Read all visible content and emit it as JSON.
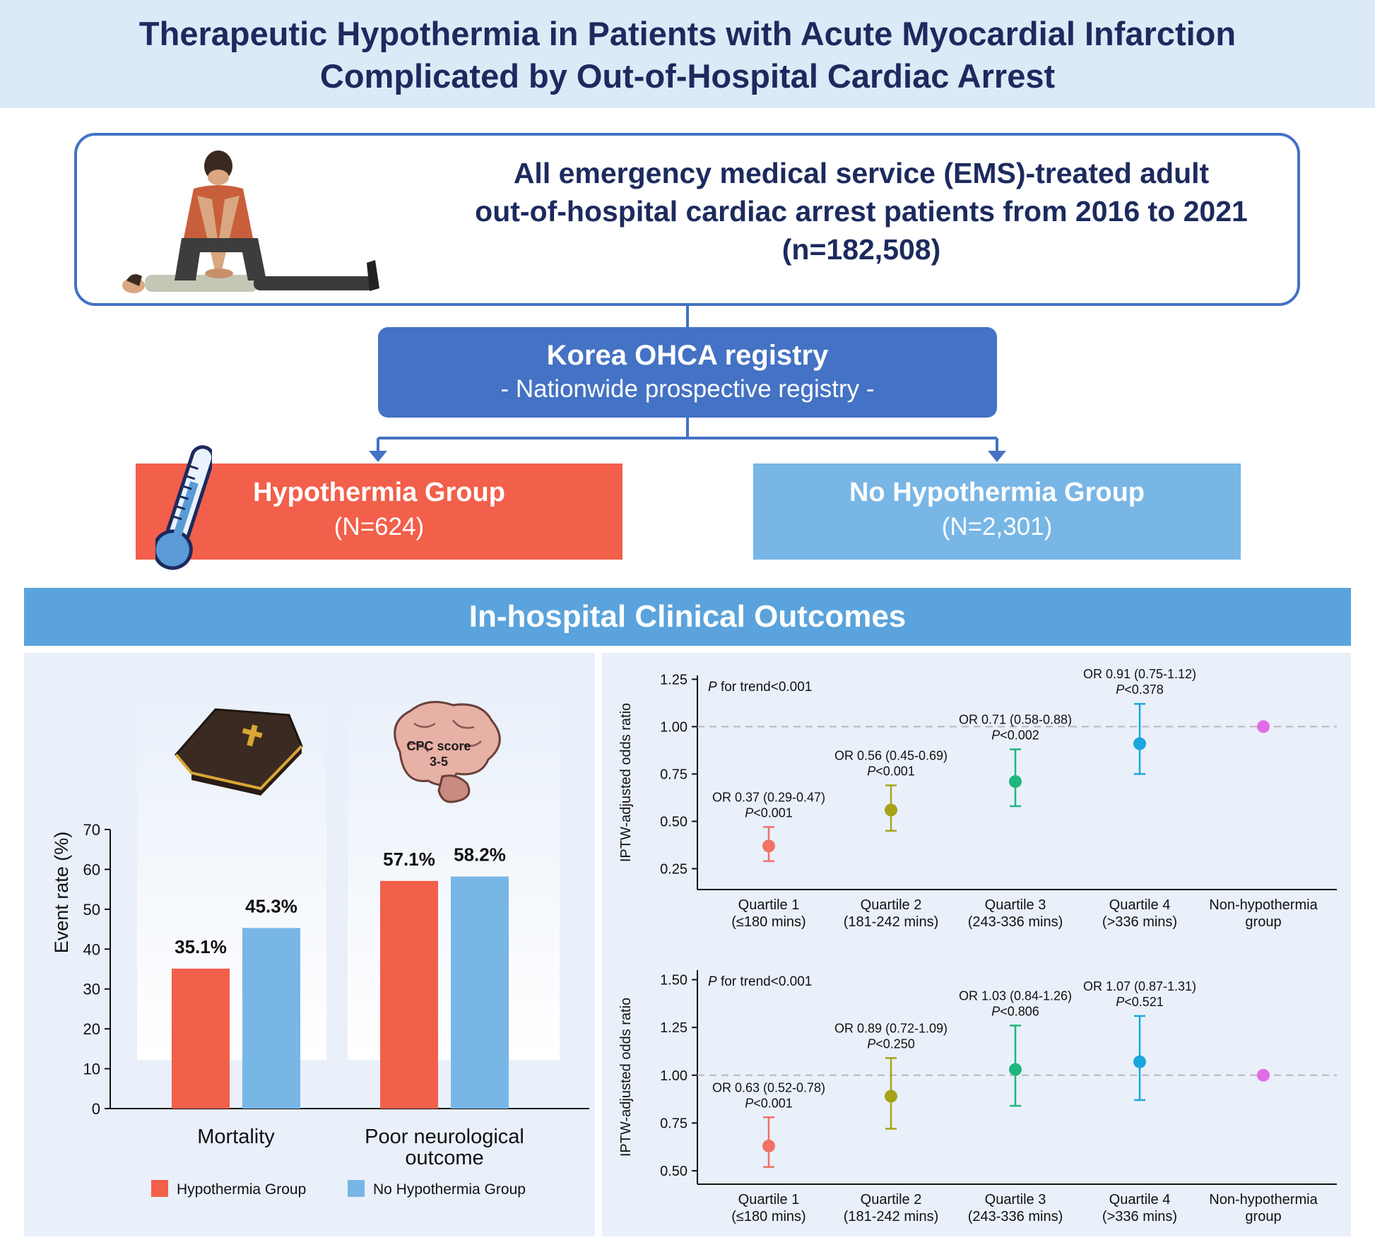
{
  "title": {
    "line1": "Therapeutic Hypothermia in Patients with Acute Myocardial Infarction",
    "line2": "Complicated by Out-of-Hospital Cardiac Arrest"
  },
  "cohort": {
    "line1": "All emergency medical service (EMS)-treated adult",
    "line2": "out-of-hospital cardiac arrest patients from 2016 to 2021",
    "line3": "(n=182,508)"
  },
  "registry": {
    "name": "Korea OHCA registry",
    "subtitle": "- Nationwide prospective registry -"
  },
  "groups": {
    "hypothermia": {
      "name": "Hypothermia Group",
      "n": "(N=624)"
    },
    "no_hypothermia": {
      "name": "No Hypothermia Group",
      "n": "(N=2,301)"
    }
  },
  "outcomes_header": "In-hospital Clinical Outcomes",
  "brain_label": {
    "line1": "CPC score",
    "line2": "3-5"
  },
  "colors": {
    "hypothermia": "#f25f4a",
    "no_hypothermia": "#78b6e6",
    "quartile1": "#f07167",
    "quartile2": "#a6a318",
    "quartile3": "#1fb77e",
    "quartile4": "#1aa6df",
    "reference": "#e26ce6"
  },
  "chart_data": [
    {
      "type": "bar",
      "ylabel": "Event rate (%)",
      "ylim": [
        0,
        70
      ],
      "yticks": [
        0,
        10,
        20,
        30,
        40,
        50,
        60,
        70
      ],
      "categories": [
        "Mortality",
        "Poor neurological outcome"
      ],
      "category_lines": [
        [
          "Mortality"
        ],
        [
          "Poor neurological",
          "outcome"
        ]
      ],
      "series": [
        {
          "name": "Hypothermia Group",
          "values": [
            35.1,
            57.1
          ],
          "labels": [
            "35.1%",
            "57.1%"
          ]
        },
        {
          "name": "No Hypothermia Group",
          "values": [
            45.3,
            58.2
          ],
          "labels": [
            "45.3%",
            "58.2%"
          ]
        }
      ],
      "legend": "bottom"
    },
    {
      "type": "scatter",
      "ylabel": "IPTW-adjusted odds ratio",
      "ylim": [
        0.14,
        1.27
      ],
      "yticks": [
        "1.25",
        "1.00",
        "0.75",
        "0.50",
        "0.25"
      ],
      "reference_line": 1.0,
      "trend_note": {
        "italic": "P",
        "text": " for trend<0.001"
      },
      "categories": [
        [
          "Quartile 1",
          "(≤180 mins)"
        ],
        [
          "Quartile 2",
          "(181-242 mins)"
        ],
        [
          "Quartile 3",
          "(243-336 mins)"
        ],
        [
          "Quartile 4",
          "(>336 mins)"
        ],
        [
          "Non-hypothermia",
          "group"
        ]
      ],
      "points": [
        {
          "or": 0.37,
          "lo": 0.29,
          "hi": 0.47,
          "label": "OR 0.37 (0.29-0.47)",
          "p": "<0.001"
        },
        {
          "or": 0.56,
          "lo": 0.45,
          "hi": 0.69,
          "label": "OR 0.56 (0.45-0.69)",
          "p": "<0.001"
        },
        {
          "or": 0.71,
          "lo": 0.58,
          "hi": 0.88,
          "label": "OR 0.71 (0.58-0.88)",
          "p": "<0.002"
        },
        {
          "or": 0.91,
          "lo": 0.75,
          "hi": 1.12,
          "label": "OR 0.91 (0.75-1.12)",
          "p": "<0.378"
        },
        {
          "or": 1.0
        }
      ]
    },
    {
      "type": "scatter",
      "ylabel": "IPTW-adjusted odds ratio",
      "ylim": [
        0.43,
        1.55
      ],
      "yticks": [
        "1.50",
        "1.25",
        "1.00",
        "0.75",
        "0.50"
      ],
      "reference_line": 1.0,
      "trend_note": {
        "italic": "P",
        "text": " for trend<0.001"
      },
      "categories": [
        [
          "Quartile 1",
          "(≤180 mins)"
        ],
        [
          "Quartile 2",
          "(181-242 mins)"
        ],
        [
          "Quartile 3",
          "(243-336 mins)"
        ],
        [
          "Quartile 4",
          "(>336 mins)"
        ],
        [
          "Non-hypothermia",
          "group"
        ]
      ],
      "points": [
        {
          "or": 0.63,
          "lo": 0.52,
          "hi": 0.78,
          "label": "OR 0.63 (0.52-0.78)",
          "p": "<0.001"
        },
        {
          "or": 0.89,
          "lo": 0.72,
          "hi": 1.09,
          "label": "OR 0.89 (0.72-1.09)",
          "p": "<0.250"
        },
        {
          "or": 1.03,
          "lo": 0.84,
          "hi": 1.26,
          "label": "OR 1.03 (0.84-1.26)",
          "p": "<0.806"
        },
        {
          "or": 1.07,
          "lo": 0.87,
          "hi": 1.31,
          "label": "OR 1.07 (0.87-1.31)",
          "p": "<0.521"
        },
        {
          "or": 1.0
        }
      ]
    }
  ]
}
